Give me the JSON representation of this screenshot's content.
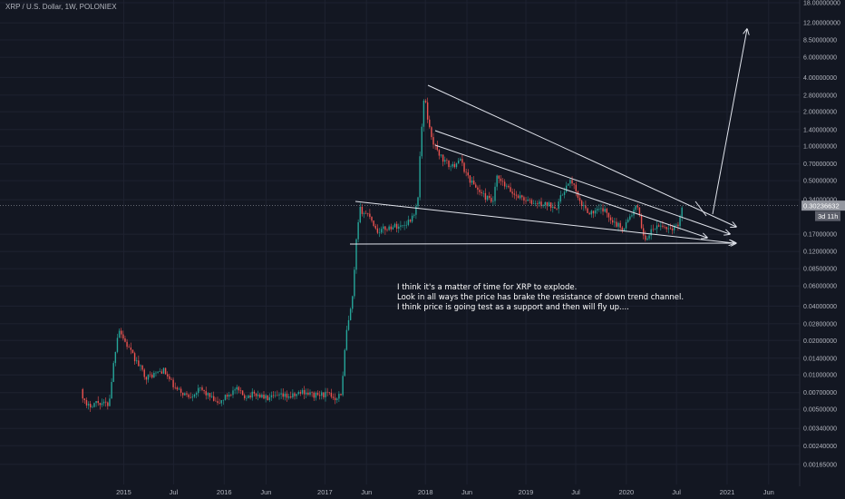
{
  "header": {
    "symbol_line": "XRP / U.S. Dollar, 1W, POLONIEX"
  },
  "annotation": {
    "lines": [
      "I think it's a matter of time for XRP to explode.",
      "Look in all ways the price has brake the resistance of down trend channel.",
      "I think price is going test as a support and then will fly up...."
    ]
  },
  "colors": {
    "background": "#131722",
    "up": "#26a69a",
    "down": "#ef5350",
    "grid": "#1e2230",
    "axis_text": "#b2b5be",
    "drawing": "#e0e3eb",
    "price_label_bg": "#9598a1",
    "countdown_bg": "#5d606b"
  },
  "chart_data": {
    "type": "candlestick",
    "y_scale": "log",
    "ylim": [
      0.0011,
      18
    ],
    "y_ticks": [
      {
        "value": 18,
        "label": "18.00000000"
      },
      {
        "value": 12,
        "label": "12.00000000"
      },
      {
        "value": 8.5,
        "label": "8.50000000"
      },
      {
        "value": 6,
        "label": "6.00000000"
      },
      {
        "value": 4,
        "label": "4.00000000"
      },
      {
        "value": 2.8,
        "label": "2.80000000"
      },
      {
        "value": 2,
        "label": "2.00000000"
      },
      {
        "value": 1.4,
        "label": "1.40000000"
      },
      {
        "value": 1,
        "label": "1.00000000"
      },
      {
        "value": 0.7,
        "label": "0.70000000"
      },
      {
        "value": 0.5,
        "label": "0.50000000"
      },
      {
        "value": 0.34,
        "label": "0.34000000"
      },
      {
        "value": 0.17,
        "label": "0.17000000"
      },
      {
        "value": 0.12,
        "label": "0.12000000"
      },
      {
        "value": 0.085,
        "label": "0.08500000"
      },
      {
        "value": 0.06,
        "label": "0.06000000"
      },
      {
        "value": 0.04,
        "label": "0.04000000"
      },
      {
        "value": 0.028,
        "label": "0.02800000"
      },
      {
        "value": 0.02,
        "label": "0.02000000"
      },
      {
        "value": 0.014,
        "label": "0.01400000"
      },
      {
        "value": 0.01,
        "label": "0.01000000"
      },
      {
        "value": 0.007,
        "label": "0.00700000"
      },
      {
        "value": 0.005,
        "label": "0.00500000"
      },
      {
        "value": 0.0034,
        "label": "0.00340000"
      },
      {
        "value": 0.0024,
        "label": "0.00240000"
      },
      {
        "value": 0.00165,
        "label": "0.00165000"
      }
    ],
    "xlim": [
      "2014-08-01",
      "2021-09-15"
    ],
    "x_ticks": [
      {
        "date": "2015-01-01",
        "label": "2015"
      },
      {
        "date": "2015-07-01",
        "label": "Jul"
      },
      {
        "date": "2016-01-01",
        "label": "2016"
      },
      {
        "date": "2016-06-01",
        "label": "Jun"
      },
      {
        "date": "2017-01-01",
        "label": "2017"
      },
      {
        "date": "2017-06-01",
        "label": "Jun"
      },
      {
        "date": "2018-01-01",
        "label": "2018"
      },
      {
        "date": "2018-06-01",
        "label": "Jun"
      },
      {
        "date": "2019-01-01",
        "label": "2019"
      },
      {
        "date": "2019-07-01",
        "label": "Jul"
      },
      {
        "date": "2020-01-01",
        "label": "2020"
      },
      {
        "date": "2020-07-01",
        "label": "Jul"
      },
      {
        "date": "2021-01-01",
        "label": "2021"
      },
      {
        "date": "2021-06-01",
        "label": "Jun"
      }
    ],
    "current_price": {
      "value": 0.30236632,
      "label": "0.30236632"
    },
    "countdown": {
      "value": 0.245,
      "label": "3d 11h"
    },
    "price_anchors": [
      [
        "2014-08-05",
        0.0075
      ],
      [
        "2014-08-25",
        0.0052
      ],
      [
        "2014-10-01",
        0.0058
      ],
      [
        "2014-11-15",
        0.0055
      ],
      [
        "2014-12-01",
        0.012
      ],
      [
        "2014-12-20",
        0.026
      ],
      [
        "2015-01-10",
        0.02
      ],
      [
        "2015-02-15",
        0.014
      ],
      [
        "2015-04-01",
        0.0095
      ],
      [
        "2015-06-01",
        0.011
      ],
      [
        "2015-07-15",
        0.0075
      ],
      [
        "2015-09-01",
        0.0065
      ],
      [
        "2015-10-15",
        0.0075
      ],
      [
        "2015-11-15",
        0.0065
      ],
      [
        "2015-12-15",
        0.0055
      ],
      [
        "2016-01-15",
        0.0065
      ],
      [
        "2016-02-20",
        0.0075
      ],
      [
        "2016-03-20",
        0.0065
      ],
      [
        "2016-05-01",
        0.0068
      ],
      [
        "2016-06-15",
        0.0062
      ],
      [
        "2016-08-01",
        0.0065
      ],
      [
        "2016-09-15",
        0.0065
      ],
      [
        "2016-10-20",
        0.0072
      ],
      [
        "2016-12-01",
        0.0066
      ],
      [
        "2017-01-15",
        0.0068
      ],
      [
        "2017-02-15",
        0.0063
      ],
      [
        "2017-03-10",
        0.007
      ],
      [
        "2017-03-25",
        0.022
      ],
      [
        "2017-04-05",
        0.03
      ],
      [
        "2017-04-20",
        0.05
      ],
      [
        "2017-05-01",
        0.14
      ],
      [
        "2017-05-15",
        0.28
      ],
      [
        "2017-06-01",
        0.26
      ],
      [
        "2017-06-20",
        0.25
      ],
      [
        "2017-07-15",
        0.18
      ],
      [
        "2017-08-15",
        0.19
      ],
      [
        "2017-09-15",
        0.2
      ],
      [
        "2017-10-15",
        0.2
      ],
      [
        "2017-11-15",
        0.23
      ],
      [
        "2017-12-10",
        0.3
      ],
      [
        "2017-12-20",
        0.9
      ],
      [
        "2017-12-31",
        2.2
      ],
      [
        "2018-01-06",
        2.8
      ],
      [
        "2018-01-20",
        1.5
      ],
      [
        "2018-02-10",
        1.0
      ],
      [
        "2018-03-15",
        0.75
      ],
      [
        "2018-04-15",
        0.65
      ],
      [
        "2018-05-10",
        0.78
      ],
      [
        "2018-06-15",
        0.52
      ],
      [
        "2018-08-01",
        0.38
      ],
      [
        "2018-09-10",
        0.32
      ],
      [
        "2018-09-25",
        0.53
      ],
      [
        "2018-10-15",
        0.47
      ],
      [
        "2018-11-25",
        0.38
      ],
      [
        "2018-12-20",
        0.36
      ],
      [
        "2019-01-25",
        0.32
      ],
      [
        "2019-03-15",
        0.31
      ],
      [
        "2019-05-01",
        0.3
      ],
      [
        "2019-06-01",
        0.44
      ],
      [
        "2019-06-25",
        0.5
      ],
      [
        "2019-07-20",
        0.32
      ],
      [
        "2019-09-01",
        0.26
      ],
      [
        "2019-10-15",
        0.28
      ],
      [
        "2019-12-01",
        0.21
      ],
      [
        "2019-12-25",
        0.19
      ],
      [
        "2020-02-15",
        0.3
      ],
      [
        "2020-03-15",
        0.15
      ],
      [
        "2020-04-15",
        0.19
      ],
      [
        "2020-05-15",
        0.2
      ],
      [
        "2020-06-15",
        0.19
      ],
      [
        "2020-07-15",
        0.2
      ],
      [
        "2020-07-25",
        0.3
      ]
    ]
  }
}
